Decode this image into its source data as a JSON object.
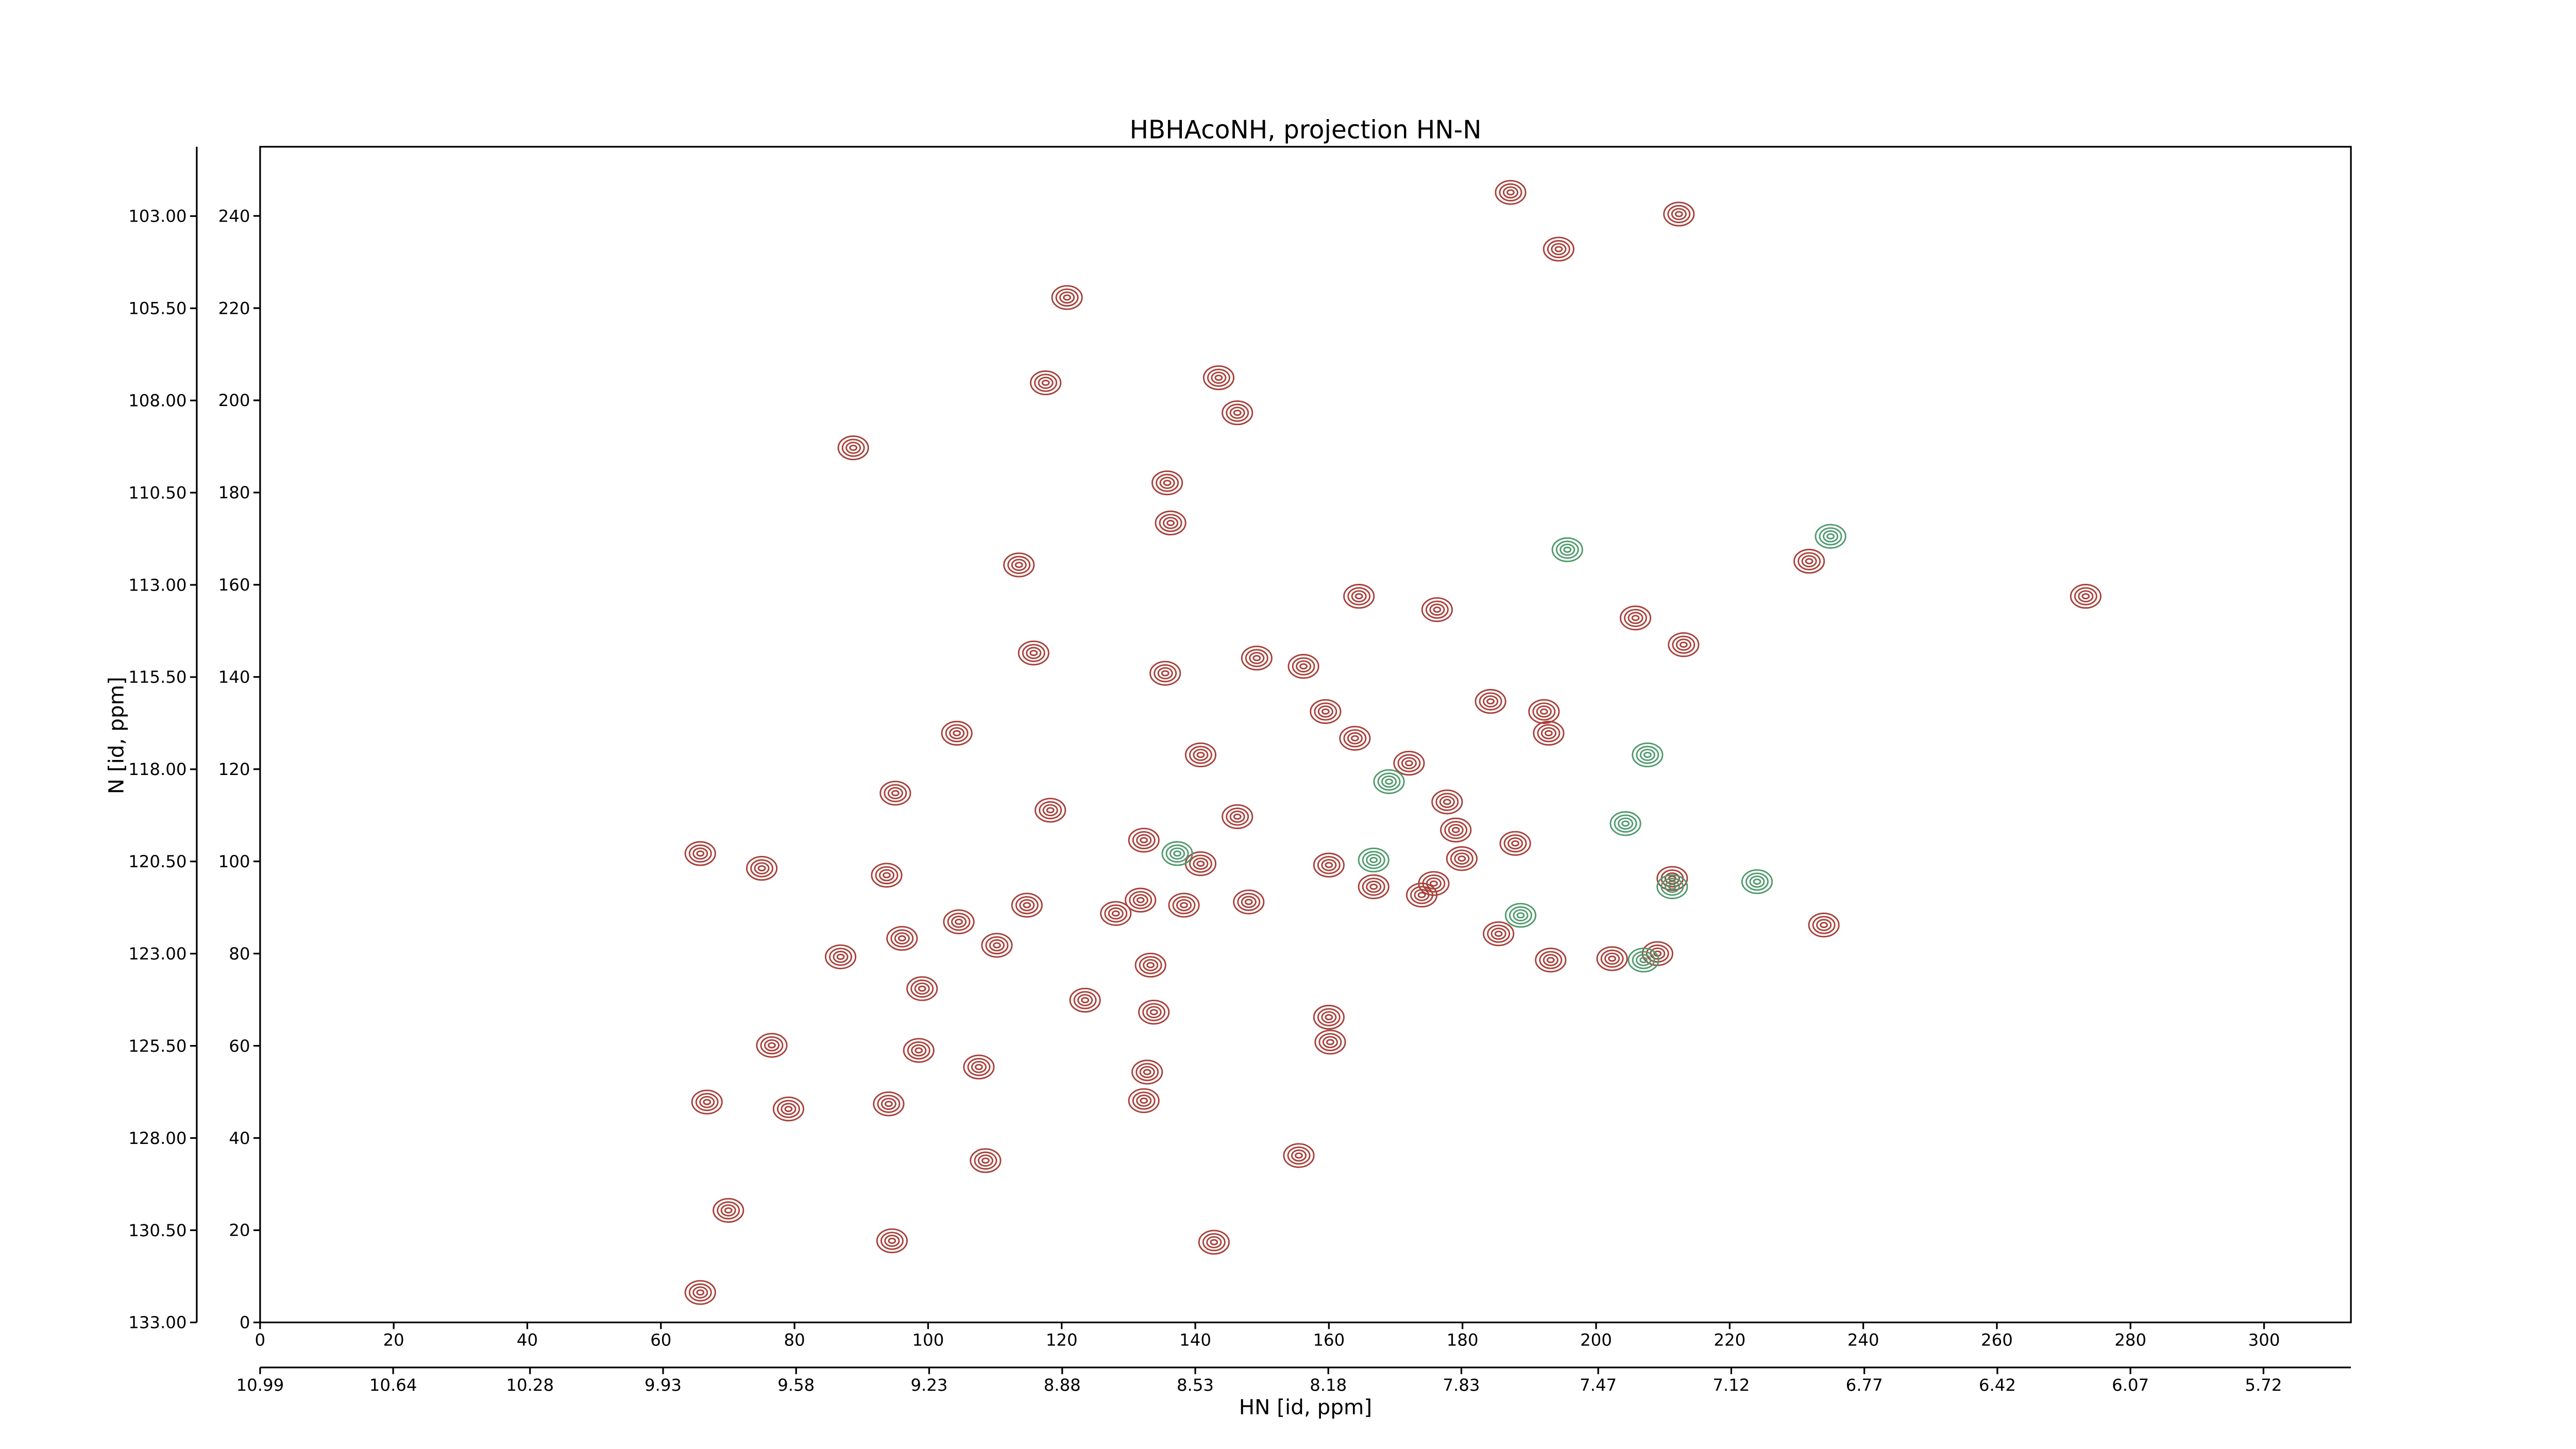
{
  "chart_data": {
    "type": "contour",
    "title": "HBHAcoNH, projection HN-N",
    "x_label": "HN [id, ppm]",
    "y_label": "N [id, ppm]",
    "xlim": [
      0,
      313
    ],
    "ylim": [
      0,
      255
    ],
    "xticks": [
      0,
      20,
      40,
      60,
      80,
      100,
      120,
      140,
      160,
      180,
      200,
      220,
      240,
      260,
      280,
      300
    ],
    "yticks": [
      0,
      20,
      40,
      60,
      80,
      100,
      120,
      140,
      160,
      180,
      200,
      220,
      240
    ],
    "x2lim": [
      10.99,
      5.49
    ],
    "x2ticks": [
      10.99,
      10.64,
      10.28,
      9.93,
      9.58,
      9.23,
      8.88,
      8.53,
      8.18,
      7.83,
      7.47,
      7.12,
      6.77,
      6.42,
      6.07,
      5.72
    ],
    "y2lim": [
      133,
      101.12
    ],
    "y2ticks": [
      {
        "value": 133,
        "label": "133.00"
      },
      {
        "value": 130.5,
        "label": "130.50"
      },
      {
        "value": 128,
        "label": "128.00"
      },
      {
        "value": 125.5,
        "label": "125.50"
      },
      {
        "value": 123,
        "label": "123.00"
      },
      {
        "value": 120.5,
        "label": "120.50"
      },
      {
        "value": 118,
        "label": "118.00"
      },
      {
        "value": 115.5,
        "label": "115.50"
      },
      {
        "value": 113,
        "label": "113.00"
      },
      {
        "value": 110.5,
        "label": "110.50"
      },
      {
        "value": 108,
        "label": "108.00"
      },
      {
        "value": 105.5,
        "label": "105.50"
      },
      {
        "value": 103,
        "label": "103.00"
      }
    ],
    "series": [
      {
        "color": "#a8403a",
        "x": [
          187.2,
          212.4,
          194.4,
          120.8,
          117.6,
          143.5,
          146.3,
          88.8,
          135.8,
          136.3,
          113.6,
          231.9,
          164.5,
          176.2,
          205.9,
          213.1,
          115.8,
          149.2,
          156.2,
          135.5,
          184.2,
          192.2,
          192.9,
          159.5,
          163.9,
          104.3,
          140.8,
          172.0,
          95.1,
          118.3,
          146.3,
          177.7,
          179.0,
          132.3,
          187.9,
          65.9,
          75.1,
          93.8,
          140.8,
          160.0,
          179.9,
          166.7,
          175.7,
          173.9,
          131.8,
          138.3,
          128.1,
          148.0,
          114.8,
          104.6,
          96.1,
          110.3,
          86.9,
          185.4,
          193.2,
          202.4,
          211.4,
          234.1,
          133.3,
          99.1,
          123.5,
          133.8,
          160.0,
          160.2,
          98.6,
          76.6,
          107.6,
          132.8,
          132.3,
          66.9,
          79.1,
          94.1,
          108.6,
          155.5,
          70.1,
          94.6,
          142.8,
          65.9,
          273.3,
          209.2
        ],
        "values": [
          245.1,
          240.4,
          232.8,
          222.3,
          203.8,
          204.9,
          197.3,
          189.7,
          182.1,
          173.4,
          164.3,
          165.1,
          157.5,
          154.6,
          152.8,
          147.0,
          145.2,
          144.1,
          142.3,
          140.8,
          134.7,
          132.5,
          127.8,
          132.5,
          126.7,
          127.8,
          123.1,
          121.3,
          114.8,
          111.1,
          109.7,
          112.9,
          106.8,
          104.6,
          103.9,
          101.7,
          98.5,
          97.0,
          99.5,
          99.2,
          100.6,
          94.5,
          95.2,
          92.7,
          91.6,
          90.5,
          88.7,
          91.2,
          90.5,
          86.9,
          83.3,
          81.8,
          79.3,
          84.3,
          78.6,
          78.9,
          96.3,
          86.2,
          77.5,
          72.4,
          69.9,
          67.3,
          66.2,
          60.8,
          59.0,
          60.1,
          55.4,
          54.3,
          48.1,
          47.8,
          46.3,
          47.4,
          35.1,
          36.2,
          24.3,
          17.7,
          17.4,
          6.5,
          157.5,
          80.0
        ]
      },
      {
        "color": "#4f9a6c",
        "x": [
          195.7,
          235.1,
          207.7,
          169.0,
          204.4,
          137.3,
          166.7,
          224.1,
          211.4,
          188.7,
          207.1
        ],
        "values": [
          167.6,
          170.5,
          123.1,
          117.3,
          108.2,
          101.7,
          100.3,
          95.6,
          94.5,
          88.3,
          78.6
        ]
      }
    ]
  }
}
